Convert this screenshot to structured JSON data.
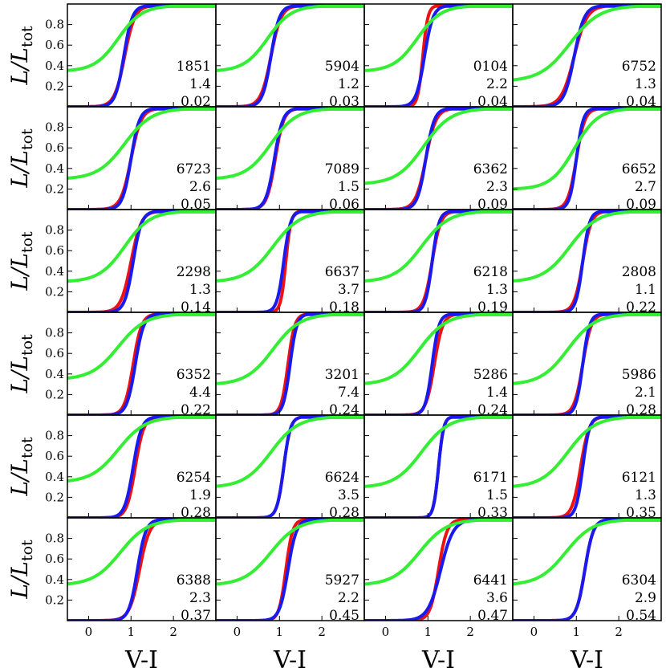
{
  "chart_data": {
    "type": "line",
    "layout": {
      "rows": 6,
      "cols": 4
    },
    "xlabel": "V-I",
    "ylabel": "L/L",
    "ylabel_sub": "tot",
    "xlim": [
      -0.5,
      3.0
    ],
    "ylim": [
      0.0,
      1.0
    ],
    "xticks": [
      0,
      1,
      2
    ],
    "yticks": [
      0.2,
      0.4,
      0.6,
      0.8
    ],
    "series_colors": {
      "red": "#ee1111",
      "blue": "#1a1aee",
      "green": "#33ee33"
    },
    "panels": [
      {
        "id": "1851",
        "line2": "1.4",
        "line3": "0.02",
        "red": [
          0.85,
          0.12,
          0.0
        ],
        "blue": [
          0.83,
          0.1,
          0.0
        ],
        "green": [
          0.7,
          0.28,
          0.35
        ]
      },
      {
        "id": "5904",
        "line2": "1.2",
        "line3": "0.03",
        "red": [
          0.8,
          0.12,
          0.0
        ],
        "blue": [
          0.8,
          0.1,
          0.0
        ],
        "green": [
          0.72,
          0.28,
          0.35
        ]
      },
      {
        "id": "0104",
        "line2": "2.2",
        "line3": "0.04",
        "red": [
          0.88,
          0.06,
          0.0
        ],
        "blue": [
          0.92,
          0.1,
          0.0
        ],
        "green": [
          0.75,
          0.28,
          0.35
        ]
      },
      {
        "id": "6752",
        "line2": "1.3",
        "line3": "0.04",
        "red": [
          0.95,
          0.15,
          0.0
        ],
        "blue": [
          0.95,
          0.12,
          0.0
        ],
        "green": [
          0.85,
          0.35,
          0.25
        ]
      },
      {
        "id": "6723",
        "line2": "2.6",
        "line3": "0.05",
        "red": [
          1.0,
          0.12,
          0.0
        ],
        "blue": [
          1.0,
          0.1,
          0.0
        ],
        "green": [
          0.85,
          0.32,
          0.3
        ]
      },
      {
        "id": "7089",
        "line2": "1.5",
        "line3": "0.06",
        "red": [
          0.9,
          0.1,
          0.0
        ],
        "blue": [
          0.88,
          0.1,
          0.0
        ],
        "green": [
          0.8,
          0.3,
          0.3
        ]
      },
      {
        "id": "6362",
        "line2": "2.3",
        "line3": "0.09",
        "red": [
          0.95,
          0.12,
          0.0
        ],
        "blue": [
          0.95,
          0.1,
          0.0
        ],
        "green": [
          0.9,
          0.32,
          0.25
        ]
      },
      {
        "id": "6652",
        "line2": "2.7",
        "line3": "0.09",
        "red": [
          1.0,
          0.1,
          0.0
        ],
        "blue": [
          1.0,
          0.08,
          0.0
        ],
        "green": [
          0.95,
          0.28,
          0.2
        ]
      },
      {
        "id": "2298",
        "line2": "1.3",
        "line3": "0.14",
        "red": [
          1.0,
          0.12,
          0.0
        ],
        "blue": [
          1.05,
          0.1,
          0.0
        ],
        "green": [
          0.85,
          0.3,
          0.3
        ]
      },
      {
        "id": "6637",
        "line2": "3.7",
        "line3": "0.18",
        "red": [
          1.15,
          0.06,
          0.0
        ],
        "blue": [
          1.1,
          0.08,
          0.0
        ],
        "green": [
          0.85,
          0.32,
          0.3
        ]
      },
      {
        "id": "6218",
        "line2": "1.3",
        "line3": "0.19",
        "red": [
          1.1,
          0.1,
          0.0
        ],
        "blue": [
          1.1,
          0.08,
          0.0
        ],
        "green": [
          0.85,
          0.32,
          0.3
        ]
      },
      {
        "id": "2808",
        "line2": "1.1",
        "line3": "0.22",
        "red": [
          1.15,
          0.1,
          0.0
        ],
        "blue": [
          1.15,
          0.08,
          0.0
        ],
        "green": [
          0.85,
          0.32,
          0.3
        ]
      },
      {
        "id": "6352",
        "line2": "4.4",
        "line3": "0.22",
        "red": [
          1.05,
          0.1,
          0.0
        ],
        "blue": [
          1.1,
          0.1,
          0.0
        ],
        "green": [
          0.7,
          0.32,
          0.35
        ]
      },
      {
        "id": "3201",
        "line2": "7.4",
        "line3": "0.24",
        "red": [
          1.2,
          0.08,
          0.0
        ],
        "blue": [
          1.25,
          0.08,
          0.0
        ],
        "green": [
          0.85,
          0.32,
          0.3
        ]
      },
      {
        "id": "5286",
        "line2": "1.4",
        "line3": "0.24",
        "red": [
          1.15,
          0.1,
          0.0
        ],
        "blue": [
          1.1,
          0.08,
          0.0
        ],
        "green": [
          0.8,
          0.32,
          0.3
        ]
      },
      {
        "id": "5986",
        "line2": "2.1",
        "line3": "0.28",
        "red": [
          1.15,
          0.1,
          0.0
        ],
        "blue": [
          1.15,
          0.08,
          0.0
        ],
        "green": [
          0.8,
          0.32,
          0.3
        ]
      },
      {
        "id": "6254",
        "line2": "1.9",
        "line3": "0.28",
        "red": [
          1.1,
          0.1,
          0.0
        ],
        "blue": [
          1.05,
          0.1,
          0.0
        ],
        "green": [
          0.7,
          0.32,
          0.35
        ]
      },
      {
        "id": "6624",
        "line2": "3.5",
        "line3": "0.28",
        "red": [
          1.1,
          0.08,
          0.0
        ],
        "blue": [
          1.1,
          0.08,
          0.0
        ],
        "green": [
          0.8,
          0.32,
          0.3
        ]
      },
      {
        "id": "6171",
        "line2": "1.5",
        "line3": "0.33",
        "red": [
          1.25,
          0.06,
          0.0
        ],
        "blue": [
          1.25,
          0.06,
          0.0
        ],
        "green": [
          0.85,
          0.32,
          0.3
        ]
      },
      {
        "id": "6121",
        "line2": "1.3",
        "line3": "0.35",
        "red": [
          1.1,
          0.1,
          0.0
        ],
        "blue": [
          1.15,
          0.08,
          0.0
        ],
        "green": [
          0.8,
          0.32,
          0.3
        ]
      },
      {
        "id": "6388",
        "line2": "2.3",
        "line3": "0.37",
        "red": [
          1.2,
          0.12,
          0.0
        ],
        "blue": [
          1.15,
          0.1,
          0.0
        ],
        "green": [
          0.75,
          0.32,
          0.35
        ]
      },
      {
        "id": "5927",
        "line2": "2.2",
        "line3": "0.45",
        "red": [
          1.15,
          0.08,
          0.0
        ],
        "blue": [
          1.2,
          0.1,
          0.0
        ],
        "green": [
          0.8,
          0.32,
          0.35
        ]
      },
      {
        "id": "6441",
        "line2": "3.6",
        "line3": "0.47",
        "red": [
          1.25,
          0.1,
          0.0
        ],
        "blue": [
          1.3,
          0.15,
          0.0
        ],
        "green": [
          0.8,
          0.32,
          0.35
        ]
      },
      {
        "id": "6304",
        "line2": "2.9",
        "line3": "0.54",
        "red": [
          1.2,
          0.1,
          0.0
        ],
        "blue": [
          1.2,
          0.1,
          0.0
        ],
        "green": [
          0.75,
          0.32,
          0.35
        ]
      }
    ]
  }
}
